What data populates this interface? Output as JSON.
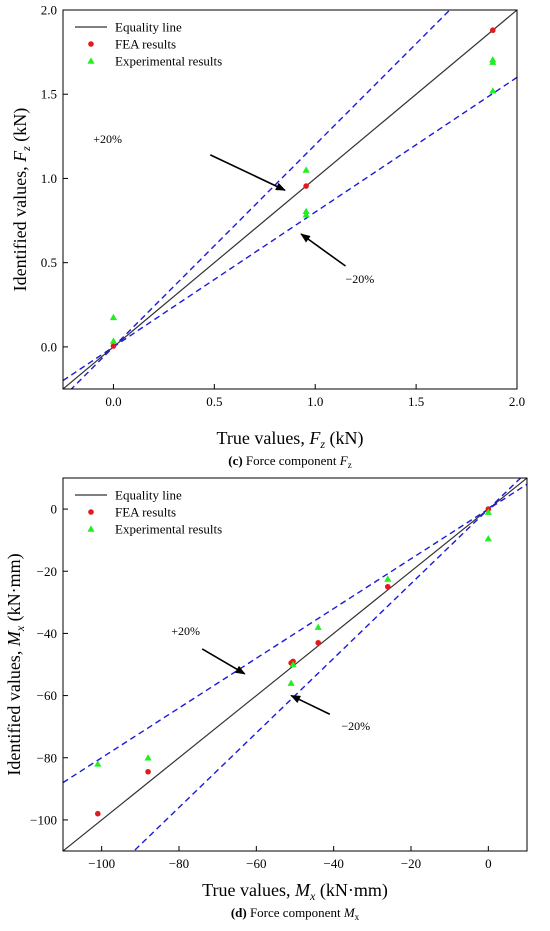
{
  "chart_data": [
    {
      "type": "scatter",
      "panel": "(c)",
      "caption_letter": "(c)",
      "caption_text": "Force component",
      "caption_symbol": "F",
      "caption_sub": "z",
      "xlabel_prefix": "True values,",
      "xlabel_symbol": "F",
      "xlabel_sub": "z",
      "xlabel_unit": "(kN)",
      "ylabel_prefix": "Identified values,",
      "ylabel_symbol": "F",
      "ylabel_sub": "z",
      "ylabel_unit": "(kN)",
      "xlim": [
        -0.25,
        2.0
      ],
      "ylim": [
        -0.25,
        2.0
      ],
      "xticks": [
        0.0,
        0.5,
        1.0,
        1.5,
        2.0
      ],
      "xtick_labels": [
        "0.0",
        "0.5",
        "1.0",
        "1.5",
        "2.0"
      ],
      "yticks": [
        0.0,
        0.5,
        1.0,
        1.5,
        2.0
      ],
      "ytick_labels": [
        "0.0",
        "0.5",
        "1.0",
        "1.5",
        "2.0"
      ],
      "grid": false,
      "legend_position": "top-left",
      "legend": [
        "Equality line",
        "FEA results",
        "Experimental results"
      ],
      "equality_line": {
        "name": "Equality line",
        "color": "#333333"
      },
      "bounds": {
        "plus_factor": 1.2,
        "minus_factor": 0.8,
        "color": "#1a1adc"
      },
      "fea": {
        "name": "FEA results",
        "color": "#e31a1c",
        "x": [
          0.0,
          0.955,
          1.88
        ],
        "y": [
          0.005,
          0.955,
          1.88
        ]
      },
      "experimental": {
        "name": "Experimental results",
        "color": "#22ee22",
        "x": [
          0.0,
          0.0,
          0.955,
          0.955,
          0.955,
          1.88,
          1.88,
          1.88
        ],
        "y": [
          0.175,
          0.035,
          1.05,
          0.805,
          0.785,
          1.705,
          1.69,
          1.52
        ]
      },
      "annotations": [
        {
          "text": "+20%",
          "label_x": -0.1,
          "label_y": 1.21,
          "arrow_from": [
            0.48,
            1.14
          ],
          "arrow_to": [
            0.85,
            0.93
          ]
        },
        {
          "text": "−20%",
          "label_x": 1.15,
          "label_y": 0.38,
          "arrow_from": [
            1.15,
            0.48
          ],
          "arrow_to": [
            0.93,
            0.67
          ]
        }
      ]
    },
    {
      "type": "scatter",
      "panel": "(d)",
      "caption_letter": "(d)",
      "caption_text": "Force component",
      "caption_symbol": "M",
      "caption_sub": "x",
      "xlabel_prefix": "True values,",
      "xlabel_symbol": "M",
      "xlabel_sub": "x",
      "xlabel_unit": "(kN·mm)",
      "ylabel_prefix": "Identified values,",
      "ylabel_symbol": "M",
      "ylabel_sub": "x",
      "ylabel_unit": "(kN·mm)",
      "xlim": [
        -110,
        10
      ],
      "ylim": [
        -110,
        10
      ],
      "xticks": [
        -100,
        -80,
        -60,
        -40,
        -20,
        0
      ],
      "xtick_labels": [
        "−100",
        "−80",
        "−60",
        "−40",
        "−20",
        "0"
      ],
      "yticks": [
        -100,
        -80,
        -60,
        -40,
        -20,
        0
      ],
      "ytick_labels": [
        "−100",
        "−80",
        "−60",
        "−40",
        "−20",
        "0"
      ],
      "grid": false,
      "legend_position": "top-left",
      "legend": [
        "Equality line",
        "FEA results",
        "Experimental results"
      ],
      "equality_line": {
        "name": "Equality line",
        "color": "#333333"
      },
      "bounds": {
        "plus_factor": 0.8,
        "minus_factor": 1.2,
        "color": "#1a1adc"
      },
      "fea": {
        "name": "FEA results",
        "color": "#e31a1c",
        "x": [
          -101,
          -88,
          -51,
          -50.5,
          -44,
          -26,
          0
        ],
        "y": [
          -98,
          -84.5,
          -49.5,
          -49,
          -43,
          -25,
          0
        ]
      },
      "experimental": {
        "name": "Experimental results",
        "color": "#22ee22",
        "x": [
          -101,
          -88,
          -51,
          -50.5,
          -44,
          -26,
          0,
          0
        ],
        "y": [
          -82,
          -80,
          -56,
          -50,
          -38,
          -22.5,
          -1,
          -9.5
        ]
      },
      "annotations": [
        {
          "text": "+20%",
          "label_x": -82,
          "label_y": -40.5,
          "arrow_from": [
            -74,
            -45
          ],
          "arrow_to": [
            -63,
            -53
          ]
        },
        {
          "text": "−20%",
          "label_x": -38,
          "label_y": -71,
          "arrow_from": [
            -41,
            -66
          ],
          "arrow_to": [
            -51,
            -60
          ]
        }
      ]
    }
  ]
}
